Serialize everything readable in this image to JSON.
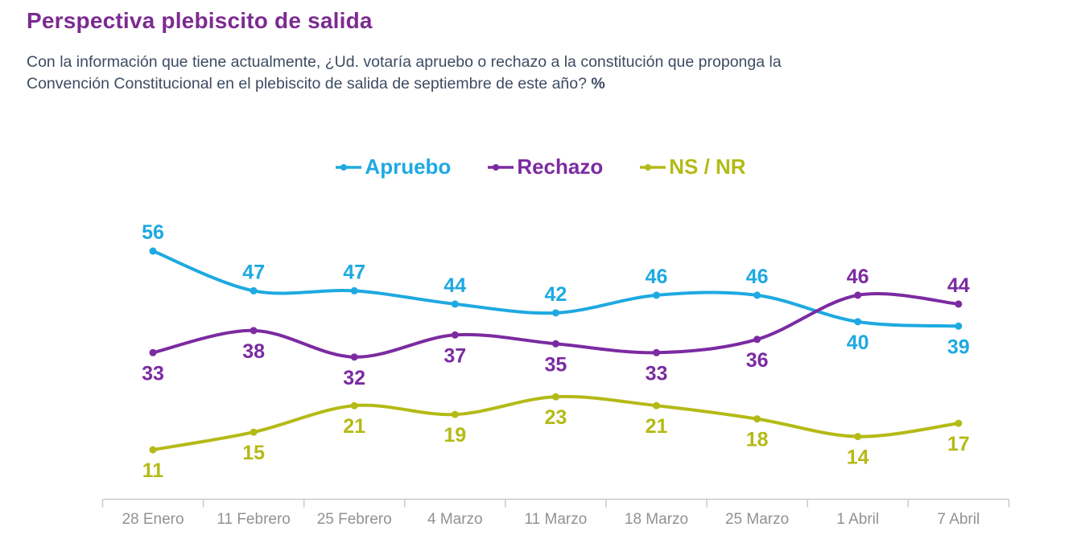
{
  "header": {
    "title": "Perspectiva plebiscito de salida",
    "question_lines": [
      "Con la información que tiene actualmente, ¿Ud. votaría apruebo o rechazo a la constitución que proponga la",
      "Convención Constitucional en el plebiscito de salida de septiembre de este año?"
    ],
    "unit": "%"
  },
  "colors": {
    "title": "#7c2b91",
    "subtitle": "#3d4b62",
    "axis": "#c9cacb",
    "tick_labels": "#8f9296",
    "background": "#ffffff"
  },
  "chart_data": {
    "type": "line",
    "title": "Perspectiva plebiscito de salida",
    "categories": [
      "28 Enero",
      "11 Febrero",
      "25 Febrero",
      "4 Marzo",
      "11 Marzo",
      "18 Marzo",
      "25 Marzo",
      "1 Abril",
      "7 Abril"
    ],
    "series": [
      {
        "name": "Apruebo",
        "color": "#1ea9e1",
        "values": [
          56,
          47,
          47,
          44,
          42,
          46,
          46,
          40,
          39
        ],
        "label_placements": [
          "above",
          "above",
          "above",
          "above",
          "above",
          "above",
          "above",
          "below",
          "below"
        ]
      },
      {
        "name": "Rechazo",
        "color": "#7b2ba1",
        "values": [
          33,
          38,
          32,
          37,
          35,
          33,
          36,
          46,
          44
        ],
        "label_placements": [
          "below",
          "below",
          "below",
          "below",
          "below",
          "below",
          "below",
          "above",
          "above"
        ]
      },
      {
        "name": "NS / NR",
        "color": "#b4ba16",
        "values": [
          11,
          15,
          21,
          19,
          23,
          21,
          18,
          14,
          17
        ],
        "label_placements": [
          "below",
          "below",
          "below",
          "below",
          "below",
          "below",
          "below",
          "below",
          "below"
        ]
      }
    ],
    "ylim": [
      0,
      60
    ],
    "xlabel": "",
    "ylabel": "",
    "grid": false,
    "legend_position": "top",
    "smooth": true,
    "data_labels": true
  }
}
